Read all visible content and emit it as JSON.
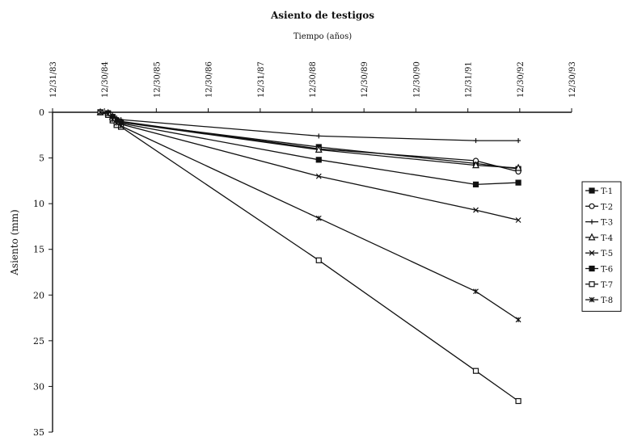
{
  "chart_data": {
    "type": "line",
    "title": "Asiento de testigos",
    "subtitle": "Tiempo (años)",
    "xlabel": "Tiempo (años)",
    "ylabel": "Asiento (mm)",
    "x_axis_position": "top",
    "y_inverted": true,
    "xlim": [
      "1983-12-31",
      "1993-12-30"
    ],
    "ylim": [
      0,
      35
    ],
    "x_ticks": [
      "12/31/83",
      "12/30/84",
      "12/30/85",
      "12/30/86",
      "12/31/87",
      "12/30/88",
      "12/30/89",
      "12/30/90",
      "12/31/91",
      "12/30/92",
      "12/30/93"
    ],
    "y_ticks": [
      0,
      5,
      10,
      15,
      20,
      25,
      30,
      35
    ],
    "grid": false,
    "legend_position": "right",
    "series": [
      {
        "name": "T-1",
        "marker": "square-filled",
        "points": [
          [
            "1984-12-01",
            0
          ],
          [
            "1985-01-25",
            0.1
          ],
          [
            "1985-02-25",
            0.5
          ],
          [
            "1985-03-25",
            0.9
          ],
          [
            "1985-04-25",
            1.1
          ],
          [
            "1989-02-15",
            3.8
          ],
          [
            "1992-02-25",
            5.6
          ],
          [
            "1992-12-20",
            6.2
          ]
        ]
      },
      {
        "name": "T-2",
        "marker": "circle-open",
        "points": [
          [
            "1984-12-01",
            0
          ],
          [
            "1985-01-25",
            0.1
          ],
          [
            "1985-02-25",
            0.5
          ],
          [
            "1985-03-25",
            0.8
          ],
          [
            "1985-04-25",
            1.0
          ],
          [
            "1989-02-15",
            4.0
          ],
          [
            "1992-02-25",
            5.3
          ],
          [
            "1992-12-20",
            6.5
          ]
        ]
      },
      {
        "name": "T-3",
        "marker": "plus",
        "points": [
          [
            "1984-12-01",
            0
          ],
          [
            "1985-01-25",
            0.1
          ],
          [
            "1985-02-25",
            0.3
          ],
          [
            "1985-03-25",
            0.6
          ],
          [
            "1985-04-25",
            0.8
          ],
          [
            "1989-02-15",
            2.6
          ],
          [
            "1992-02-25",
            3.1
          ],
          [
            "1992-12-20",
            3.1
          ]
        ]
      },
      {
        "name": "T-4",
        "marker": "triangle-open",
        "points": [
          [
            "1984-12-01",
            0
          ],
          [
            "1985-01-25",
            0.1
          ],
          [
            "1985-02-25",
            0.5
          ],
          [
            "1985-03-25",
            0.9
          ],
          [
            "1985-04-25",
            1.1
          ],
          [
            "1989-02-15",
            4.1
          ],
          [
            "1992-02-25",
            5.8
          ],
          [
            "1992-12-20",
            6.1
          ]
        ]
      },
      {
        "name": "T-5",
        "marker": "cross",
        "points": [
          [
            "1984-12-01",
            0
          ],
          [
            "1985-01-25",
            0.2
          ],
          [
            "1985-02-25",
            0.7
          ],
          [
            "1985-03-25",
            1.1
          ],
          [
            "1985-04-25",
            1.3
          ],
          [
            "1989-02-15",
            7.0
          ],
          [
            "1992-02-25",
            10.7
          ],
          [
            "1992-12-20",
            11.8
          ]
        ]
      },
      {
        "name": "T-6",
        "marker": "square-filled",
        "points": [
          [
            "1984-12-01",
            0
          ],
          [
            "1985-01-25",
            0.2
          ],
          [
            "1985-02-25",
            0.6
          ],
          [
            "1985-03-25",
            1.0
          ],
          [
            "1985-04-25",
            1.2
          ],
          [
            "1989-02-15",
            5.2
          ],
          [
            "1992-02-25",
            7.9
          ],
          [
            "1992-12-20",
            7.7
          ]
        ]
      },
      {
        "name": "T-7",
        "marker": "square-open",
        "points": [
          [
            "1984-12-01",
            0
          ],
          [
            "1985-01-25",
            0.3
          ],
          [
            "1985-02-25",
            0.9
          ],
          [
            "1985-03-25",
            1.4
          ],
          [
            "1985-04-25",
            1.6
          ],
          [
            "1989-02-15",
            16.2
          ],
          [
            "1992-02-25",
            28.3
          ],
          [
            "1992-12-20",
            31.6
          ]
        ]
      },
      {
        "name": "T-8",
        "marker": "asterisk",
        "points": [
          [
            "1984-12-01",
            0
          ],
          [
            "1985-01-25",
            0.2
          ],
          [
            "1985-02-25",
            0.8
          ],
          [
            "1985-03-25",
            1.2
          ],
          [
            "1985-04-25",
            1.5
          ],
          [
            "1989-02-15",
            11.6
          ],
          [
            "1992-02-25",
            19.6
          ],
          [
            "1992-12-20",
            22.7
          ]
        ]
      }
    ]
  }
}
